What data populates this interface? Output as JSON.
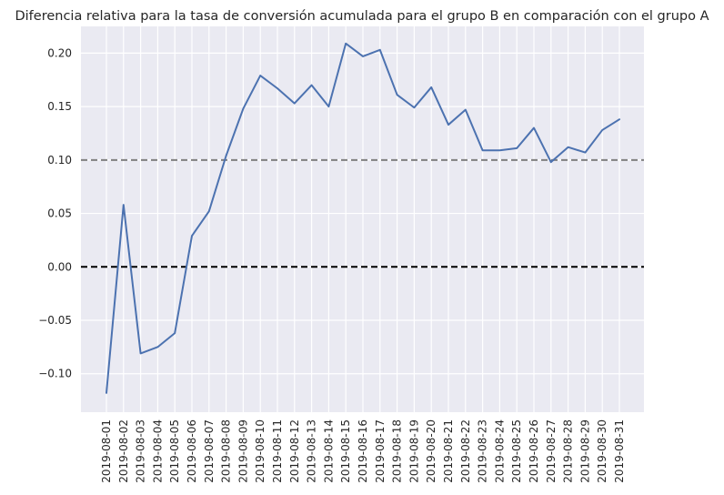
{
  "chart_data": {
    "type": "line",
    "title": "Diferencia relativa para la tasa de conversión acumulada para el grupo B en comparación con el grupo A",
    "xlabel": "",
    "ylabel": "",
    "x": [
      "2019-08-01",
      "2019-08-02",
      "2019-08-03",
      "2019-08-04",
      "2019-08-05",
      "2019-08-06",
      "2019-08-07",
      "2019-08-08",
      "2019-08-09",
      "2019-08-10",
      "2019-08-11",
      "2019-08-12",
      "2019-08-13",
      "2019-08-14",
      "2019-08-15",
      "2019-08-16",
      "2019-08-17",
      "2019-08-18",
      "2019-08-19",
      "2019-08-20",
      "2019-08-21",
      "2019-08-22",
      "2019-08-23",
      "2019-08-24",
      "2019-08-25",
      "2019-08-26",
      "2019-08-27",
      "2019-08-28",
      "2019-08-29",
      "2019-08-30",
      "2019-08-31"
    ],
    "series": [
      {
        "values": [
          -0.118,
          0.058,
          -0.081,
          -0.075,
          -0.062,
          0.029,
          0.052,
          0.104,
          0.148,
          0.179,
          0.167,
          0.153,
          0.17,
          0.15,
          0.209,
          0.197,
          0.203,
          0.161,
          0.149,
          0.168,
          0.133,
          0.147,
          0.109,
          0.109,
          0.111,
          0.13,
          0.098,
          0.112,
          0.107,
          0.128,
          0.138
        ],
        "color": "#4c72b0"
      }
    ],
    "yticks": [
      -0.1,
      -0.05,
      0.0,
      0.05,
      0.1,
      0.15,
      0.2
    ],
    "ytick_labels": [
      "−0.10",
      "−0.05",
      "0.00",
      "0.05",
      "0.10",
      "0.15",
      "0.20"
    ],
    "ylim": [
      -0.136,
      0.225
    ],
    "reference_lines": [
      {
        "y": 0.0,
        "color": "#000000",
        "style": "dashed"
      },
      {
        "y": 0.1,
        "color": "#808080",
        "style": "dashed"
      }
    ],
    "grid": true,
    "background": "#eaeaf2",
    "grid_color": "#ffffff"
  }
}
